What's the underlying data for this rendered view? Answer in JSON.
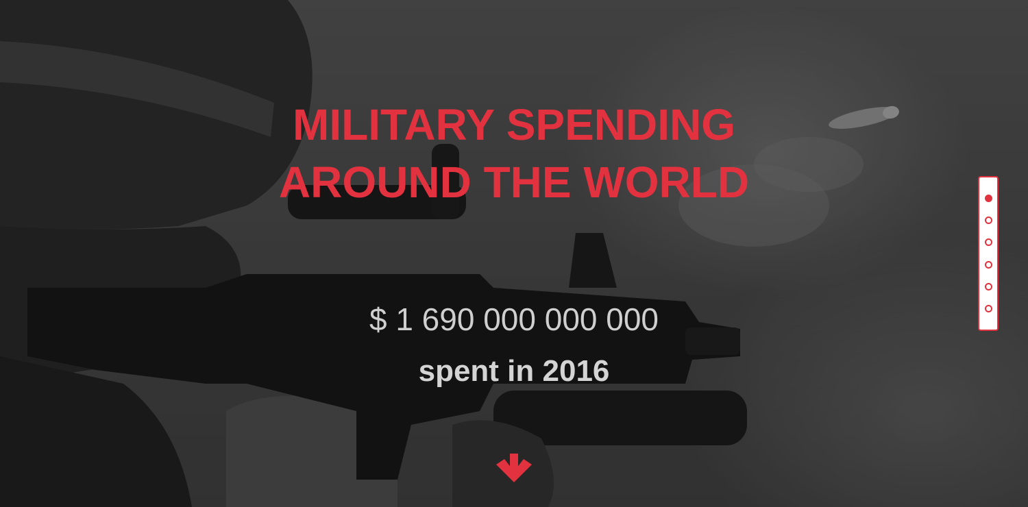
{
  "hero": {
    "title_line1": "MILITARY SPENDING",
    "title_line2": "AROUND THE WORLD",
    "amount": "$ 1 690 000 000 000",
    "subtitle": "spent in 2016",
    "background_image": "soldier-aiming-rifle-photo"
  },
  "colors": {
    "accent": "#e3323f",
    "amount_text": "#cfcfcf",
    "subtitle_text": "#d4d4d4",
    "nav_background": "#ffffff"
  },
  "scroll_down": {
    "icon": "arrow-down-icon"
  },
  "dot_nav": {
    "active_index": 0,
    "count": 6
  }
}
